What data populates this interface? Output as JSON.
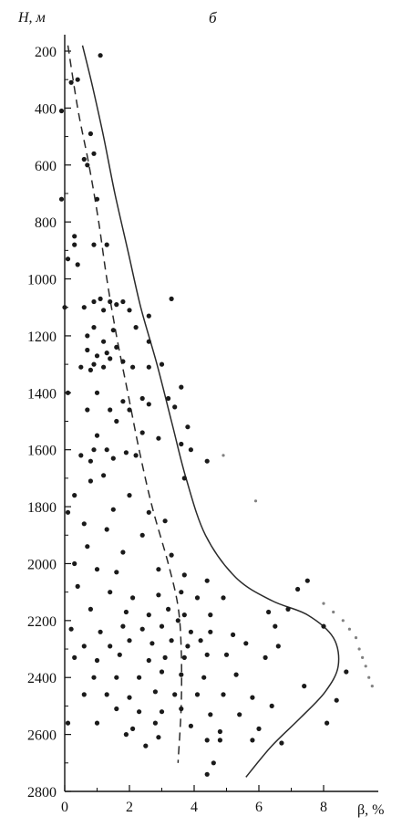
{
  "chart_data": {
    "type": "scatter",
    "panel_label": "б",
    "xlabel": "β, %",
    "ylabel": "H, м",
    "xlim": [
      0,
      9.2
    ],
    "ylim": [
      180,
      2800
    ],
    "y_inverted": true,
    "x_ticks": [
      0,
      2,
      4,
      6,
      8
    ],
    "x_minor_ticks": [
      1,
      3,
      5,
      7
    ],
    "y_ticks": [
      200,
      400,
      600,
      800,
      1000,
      1200,
      1400,
      1600,
      1800,
      2000,
      2200,
      2400,
      2600,
      2800
    ],
    "y_minor_ticks": [
      300,
      500,
      700,
      900,
      1100,
      1300,
      1500,
      1700,
      1900,
      2100,
      2300,
      2500,
      2700
    ],
    "grid": false,
    "colors": {
      "points": "#1a1a1a",
      "curves": "#2a2a2a",
      "axis": "#111111"
    },
    "envelope_curve": [
      [
        0.55,
        180
      ],
      [
        0.85,
        320
      ],
      [
        1.2,
        500
      ],
      [
        1.55,
        700
      ],
      [
        1.95,
        900
      ],
      [
        2.35,
        1100
      ],
      [
        2.85,
        1300
      ],
      [
        3.3,
        1500
      ],
      [
        3.75,
        1700
      ],
      [
        4.35,
        1900
      ],
      [
        5.3,
        2050
      ],
      [
        6.4,
        2130
      ],
      [
        7.5,
        2180
      ],
      [
        8.3,
        2260
      ],
      [
        8.45,
        2360
      ],
      [
        8.05,
        2450
      ],
      [
        7.3,
        2540
      ],
      [
        6.4,
        2640
      ],
      [
        5.6,
        2750
      ]
    ],
    "mean_curve": [
      [
        0.1,
        180
      ],
      [
        0.4,
        400
      ],
      [
        0.75,
        600
      ],
      [
        1.05,
        800
      ],
      [
        1.3,
        1000
      ],
      [
        1.6,
        1200
      ],
      [
        1.95,
        1400
      ],
      [
        2.3,
        1600
      ],
      [
        2.7,
        1800
      ],
      [
        3.2,
        2000
      ],
      [
        3.5,
        2150
      ],
      [
        3.6,
        2300
      ],
      [
        3.6,
        2500
      ],
      [
        3.5,
        2700
      ]
    ],
    "points": [
      [
        1.1,
        215
      ],
      [
        -0.1,
        410
      ],
      [
        0.2,
        310
      ],
      [
        0.4,
        300
      ],
      [
        0.8,
        490
      ],
      [
        0.9,
        560
      ],
      [
        0.6,
        580
      ],
      [
        0.7,
        600
      ],
      [
        1.0,
        720
      ],
      [
        -0.1,
        720
      ],
      [
        0.3,
        850
      ],
      [
        0.3,
        880
      ],
      [
        0.9,
        880
      ],
      [
        1.3,
        880
      ],
      [
        0.1,
        930
      ],
      [
        0.4,
        950
      ],
      [
        0.0,
        1100
      ],
      [
        0.6,
        1100
      ],
      [
        0.9,
        1080
      ],
      [
        1.1,
        1070
      ],
      [
        1.4,
        1080
      ],
      [
        1.6,
        1090
      ],
      [
        1.8,
        1080
      ],
      [
        1.2,
        1110
      ],
      [
        2.0,
        1110
      ],
      [
        2.6,
        1130
      ],
      [
        3.3,
        1070
      ],
      [
        0.9,
        1170
      ],
      [
        1.5,
        1180
      ],
      [
        2.2,
        1170
      ],
      [
        0.7,
        1200
      ],
      [
        1.2,
        1220
      ],
      [
        1.6,
        1240
      ],
      [
        2.6,
        1220
      ],
      [
        0.7,
        1250
      ],
      [
        1.0,
        1270
      ],
      [
        1.3,
        1260
      ],
      [
        1.4,
        1280
      ],
      [
        1.8,
        1290
      ],
      [
        0.9,
        1300
      ],
      [
        0.5,
        1310
      ],
      [
        0.8,
        1320
      ],
      [
        1.2,
        1310
      ],
      [
        2.1,
        1310
      ],
      [
        2.6,
        1310
      ],
      [
        3.0,
        1300
      ],
      [
        0.1,
        1400
      ],
      [
        1.0,
        1400
      ],
      [
        1.8,
        1430
      ],
      [
        2.4,
        1420
      ],
      [
        3.2,
        1420
      ],
      [
        3.6,
        1380
      ],
      [
        1.4,
        1460
      ],
      [
        2.0,
        1460
      ],
      [
        2.6,
        1440
      ],
      [
        3.4,
        1450
      ],
      [
        0.7,
        1460
      ],
      [
        3.8,
        1520
      ],
      [
        1.6,
        1500
      ],
      [
        2.4,
        1540
      ],
      [
        1.0,
        1550
      ],
      [
        2.9,
        1560
      ],
      [
        3.6,
        1580
      ],
      [
        0.9,
        1600
      ],
      [
        1.3,
        1600
      ],
      [
        1.9,
        1610
      ],
      [
        0.5,
        1620
      ],
      [
        0.8,
        1640
      ],
      [
        1.5,
        1630
      ],
      [
        2.2,
        1620
      ],
      [
        3.9,
        1600
      ],
      [
        4.4,
        1640
      ],
      [
        1.2,
        1690
      ],
      [
        0.8,
        1710
      ],
      [
        3.7,
        1700
      ],
      [
        0.3,
        1760
      ],
      [
        2.0,
        1760
      ],
      [
        0.1,
        1820
      ],
      [
        1.5,
        1810
      ],
      [
        2.6,
        1820
      ],
      [
        3.1,
        1850
      ],
      [
        0.6,
        1860
      ],
      [
        1.3,
        1880
      ],
      [
        2.4,
        1900
      ],
      [
        0.7,
        1940
      ],
      [
        1.8,
        1960
      ],
      [
        3.3,
        1970
      ],
      [
        0.3,
        2000
      ],
      [
        1.0,
        2020
      ],
      [
        1.6,
        2030
      ],
      [
        2.9,
        2020
      ],
      [
        3.7,
        2040
      ],
      [
        4.4,
        2060
      ],
      [
        0.4,
        2080
      ],
      [
        1.4,
        2100
      ],
      [
        2.1,
        2120
      ],
      [
        2.9,
        2110
      ],
      [
        3.6,
        2100
      ],
      [
        4.1,
        2120
      ],
      [
        4.9,
        2120
      ],
      [
        7.2,
        2090
      ],
      [
        7.5,
        2060
      ],
      [
        0.8,
        2160
      ],
      [
        1.9,
        2170
      ],
      [
        2.6,
        2180
      ],
      [
        3.2,
        2160
      ],
      [
        3.7,
        2180
      ],
      [
        4.5,
        2180
      ],
      [
        6.3,
        2170
      ],
      [
        6.9,
        2160
      ],
      [
        0.2,
        2230
      ],
      [
        1.1,
        2240
      ],
      [
        1.8,
        2220
      ],
      [
        2.4,
        2230
      ],
      [
        3.0,
        2220
      ],
      [
        3.5,
        2200
      ],
      [
        3.9,
        2240
      ],
      [
        4.5,
        2240
      ],
      [
        5.2,
        2250
      ],
      [
        6.5,
        2220
      ],
      [
        0.6,
        2290
      ],
      [
        1.4,
        2290
      ],
      [
        2.0,
        2270
      ],
      [
        2.7,
        2280
      ],
      [
        3.3,
        2270
      ],
      [
        3.8,
        2290
      ],
      [
        4.2,
        2270
      ],
      [
        5.6,
        2280
      ],
      [
        6.6,
        2290
      ],
      [
        8.0,
        2220
      ],
      [
        0.3,
        2330
      ],
      [
        1.0,
        2340
      ],
      [
        1.7,
        2320
      ],
      [
        2.6,
        2340
      ],
      [
        3.1,
        2330
      ],
      [
        3.7,
        2330
      ],
      [
        4.4,
        2320
      ],
      [
        5.0,
        2320
      ],
      [
        6.2,
        2330
      ],
      [
        0.9,
        2400
      ],
      [
        1.6,
        2400
      ],
      [
        2.3,
        2400
      ],
      [
        3.0,
        2380
      ],
      [
        3.6,
        2390
      ],
      [
        4.3,
        2400
      ],
      [
        5.3,
        2390
      ],
      [
        8.7,
        2380
      ],
      [
        0.6,
        2460
      ],
      [
        1.3,
        2460
      ],
      [
        2.0,
        2470
      ],
      [
        2.8,
        2450
      ],
      [
        3.4,
        2460
      ],
      [
        4.1,
        2460
      ],
      [
        4.9,
        2460
      ],
      [
        5.8,
        2470
      ],
      [
        7.4,
        2430
      ],
      [
        8.4,
        2480
      ],
      [
        1.6,
        2510
      ],
      [
        2.3,
        2520
      ],
      [
        3.0,
        2520
      ],
      [
        3.6,
        2510
      ],
      [
        4.5,
        2530
      ],
      [
        5.4,
        2530
      ],
      [
        6.4,
        2500
      ],
      [
        1.0,
        2560
      ],
      [
        2.1,
        2580
      ],
      [
        2.8,
        2560
      ],
      [
        3.9,
        2570
      ],
      [
        4.8,
        2590
      ],
      [
        6.0,
        2580
      ],
      [
        8.1,
        2560
      ],
      [
        0.1,
        2560
      ],
      [
        1.9,
        2600
      ],
      [
        2.9,
        2610
      ],
      [
        4.4,
        2620
      ],
      [
        4.8,
        2620
      ],
      [
        5.8,
        2620
      ],
      [
        6.7,
        2630
      ],
      [
        2.5,
        2640
      ],
      [
        4.6,
        2700
      ],
      [
        4.4,
        2740
      ]
    ],
    "faint_points": [
      [
        8.0,
        2140
      ],
      [
        8.3,
        2170
      ],
      [
        8.6,
        2200
      ],
      [
        8.8,
        2230
      ],
      [
        9.0,
        2260
      ],
      [
        9.1,
        2300
      ],
      [
        9.2,
        2330
      ],
      [
        9.3,
        2360
      ],
      [
        9.4,
        2400
      ],
      [
        9.5,
        2430
      ],
      [
        4.9,
        1620
      ],
      [
        5.9,
        1780
      ]
    ]
  }
}
